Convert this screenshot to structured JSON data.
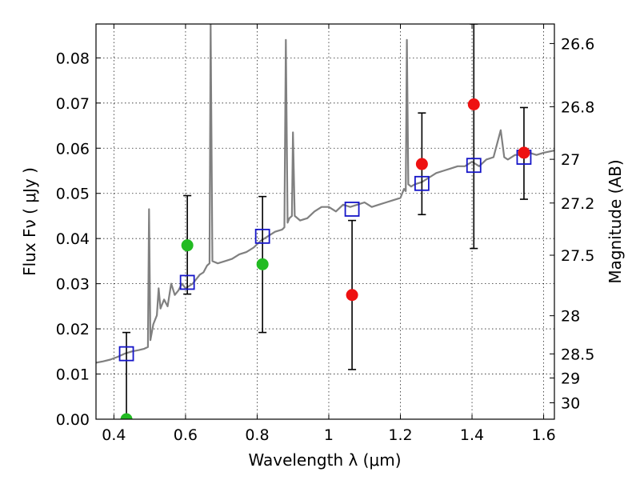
{
  "chart_data": {
    "type": "scatter",
    "xlabel": "Wavelength  λ (μm)",
    "ylabel": "Flux  Fν  ( μJy )",
    "y2label": "Magnitude (AB)",
    "xlim": [
      0.35,
      1.63
    ],
    "ylim": [
      0.0,
      0.0875
    ],
    "x_ticks": [
      "0.4",
      "0.6",
      "0.8",
      "1",
      "1.2",
      "1.4",
      "1.6"
    ],
    "x_tick_values": [
      0.4,
      0.6,
      0.8,
      1.0,
      1.2,
      1.4,
      1.6
    ],
    "y_ticks": [
      "0.00",
      "0.01",
      "0.02",
      "0.03",
      "0.04",
      "0.05",
      "0.06",
      "0.07",
      "0.08"
    ],
    "y_tick_values": [
      0.0,
      0.01,
      0.02,
      0.03,
      0.04,
      0.05,
      0.06,
      0.07,
      0.08
    ],
    "y2_ticks": [
      "26.6",
      "26.8",
      "27",
      "27.2",
      "27.5",
      "28",
      "28.5",
      "29",
      "30"
    ],
    "y2_tick_values": [
      26.6,
      26.8,
      27.0,
      27.2,
      27.5,
      28.0,
      28.5,
      29.0,
      30.0
    ],
    "grid": true,
    "colors": {
      "spectrum": "#808080",
      "model_squares": "#1515c8",
      "green_points": "#22bb22",
      "red_points": "#ee1111",
      "errorbars": "#000000"
    },
    "series": [
      {
        "kind": "line",
        "points": [
          [
            0.35,
            0.0125
          ],
          [
            0.37,
            0.0128
          ],
          [
            0.39,
            0.0132
          ],
          [
            0.41,
            0.0138
          ],
          [
            0.43,
            0.0145
          ],
          [
            0.45,
            0.015
          ],
          [
            0.47,
            0.0153
          ],
          [
            0.485,
            0.0156
          ],
          [
            0.495,
            0.016
          ],
          [
            0.498,
            0.0465
          ],
          [
            0.502,
            0.0175
          ],
          [
            0.51,
            0.021
          ],
          [
            0.52,
            0.023
          ],
          [
            0.525,
            0.029
          ],
          [
            0.53,
            0.0245
          ],
          [
            0.54,
            0.0265
          ],
          [
            0.55,
            0.025
          ],
          [
            0.56,
            0.03
          ],
          [
            0.57,
            0.0275
          ],
          [
            0.58,
            0.0285
          ],
          [
            0.59,
            0.03
          ],
          [
            0.6,
            0.029
          ],
          [
            0.61,
            0.0295
          ],
          [
            0.62,
            0.03
          ],
          [
            0.63,
            0.031
          ],
          [
            0.64,
            0.032
          ],
          [
            0.65,
            0.0325
          ],
          [
            0.66,
            0.034
          ],
          [
            0.667,
            0.0345
          ],
          [
            0.67,
            0.0875
          ],
          [
            0.675,
            0.035
          ],
          [
            0.69,
            0.0345
          ],
          [
            0.71,
            0.035
          ],
          [
            0.73,
            0.0355
          ],
          [
            0.75,
            0.0365
          ],
          [
            0.77,
            0.037
          ],
          [
            0.79,
            0.038
          ],
          [
            0.81,
            0.0395
          ],
          [
            0.83,
            0.0405
          ],
          [
            0.85,
            0.0415
          ],
          [
            0.87,
            0.042
          ],
          [
            0.876,
            0.0425
          ],
          [
            0.88,
            0.084
          ],
          [
            0.885,
            0.0435
          ],
          [
            0.89,
            0.0445
          ],
          [
            0.897,
            0.045
          ],
          [
            0.9,
            0.0635
          ],
          [
            0.905,
            0.045
          ],
          [
            0.92,
            0.044
          ],
          [
            0.94,
            0.0445
          ],
          [
            0.96,
            0.046
          ],
          [
            0.98,
            0.047
          ],
          [
            1.0,
            0.047
          ],
          [
            1.02,
            0.046
          ],
          [
            1.04,
            0.0475
          ],
          [
            1.06,
            0.047
          ],
          [
            1.08,
            0.0475
          ],
          [
            1.1,
            0.048
          ],
          [
            1.12,
            0.047
          ],
          [
            1.14,
            0.0475
          ],
          [
            1.16,
            0.048
          ],
          [
            1.18,
            0.0485
          ],
          [
            1.2,
            0.049
          ],
          [
            1.21,
            0.051
          ],
          [
            1.215,
            0.0505
          ],
          [
            1.218,
            0.084
          ],
          [
            1.222,
            0.052
          ],
          [
            1.23,
            0.0515
          ],
          [
            1.24,
            0.052
          ],
          [
            1.26,
            0.0525
          ],
          [
            1.28,
            0.0535
          ],
          [
            1.3,
            0.0545
          ],
          [
            1.32,
            0.055
          ],
          [
            1.34,
            0.0555
          ],
          [
            1.36,
            0.056
          ],
          [
            1.38,
            0.056
          ],
          [
            1.4,
            0.057
          ],
          [
            1.42,
            0.056
          ],
          [
            1.44,
            0.0575
          ],
          [
            1.46,
            0.058
          ],
          [
            1.48,
            0.064
          ],
          [
            1.49,
            0.058
          ],
          [
            1.5,
            0.0575
          ],
          [
            1.52,
            0.0585
          ],
          [
            1.54,
            0.0585
          ],
          [
            1.56,
            0.059
          ],
          [
            1.58,
            0.0585
          ],
          [
            1.6,
            0.059
          ],
          [
            1.63,
            0.0595
          ]
        ]
      },
      {
        "kind": "squares",
        "points": [
          [
            0.435,
            0.0145
          ],
          [
            0.605,
            0.0303
          ],
          [
            0.815,
            0.0405
          ],
          [
            1.065,
            0.0465
          ],
          [
            1.26,
            0.0522
          ],
          [
            1.405,
            0.0562
          ],
          [
            1.545,
            0.058
          ]
        ]
      },
      {
        "kind": "circles",
        "color_key": "green_points",
        "points": [
          [
            0.435,
            0.0
          ],
          [
            0.605,
            0.0385
          ],
          [
            0.815,
            0.0343
          ]
        ]
      },
      {
        "kind": "circles",
        "color_key": "red_points",
        "points": [
          [
            1.065,
            0.0275
          ],
          [
            1.26,
            0.0565
          ],
          [
            1.405,
            0.0697
          ],
          [
            1.545,
            0.059
          ]
        ]
      },
      {
        "kind": "errorbars",
        "bars": [
          {
            "x": 0.435,
            "low": 0.0,
            "high": 0.0192
          },
          {
            "x": 0.605,
            "low": 0.0277,
            "high": 0.0495
          },
          {
            "x": 0.815,
            "low": 0.0192,
            "high": 0.0493
          },
          {
            "x": 1.065,
            "low": 0.011,
            "high": 0.044
          },
          {
            "x": 1.26,
            "low": 0.0453,
            "high": 0.0678
          },
          {
            "x": 1.405,
            "low": 0.0378,
            "high": 0.0875
          },
          {
            "x": 1.545,
            "low": 0.0487,
            "high": 0.069
          }
        ]
      }
    ]
  }
}
